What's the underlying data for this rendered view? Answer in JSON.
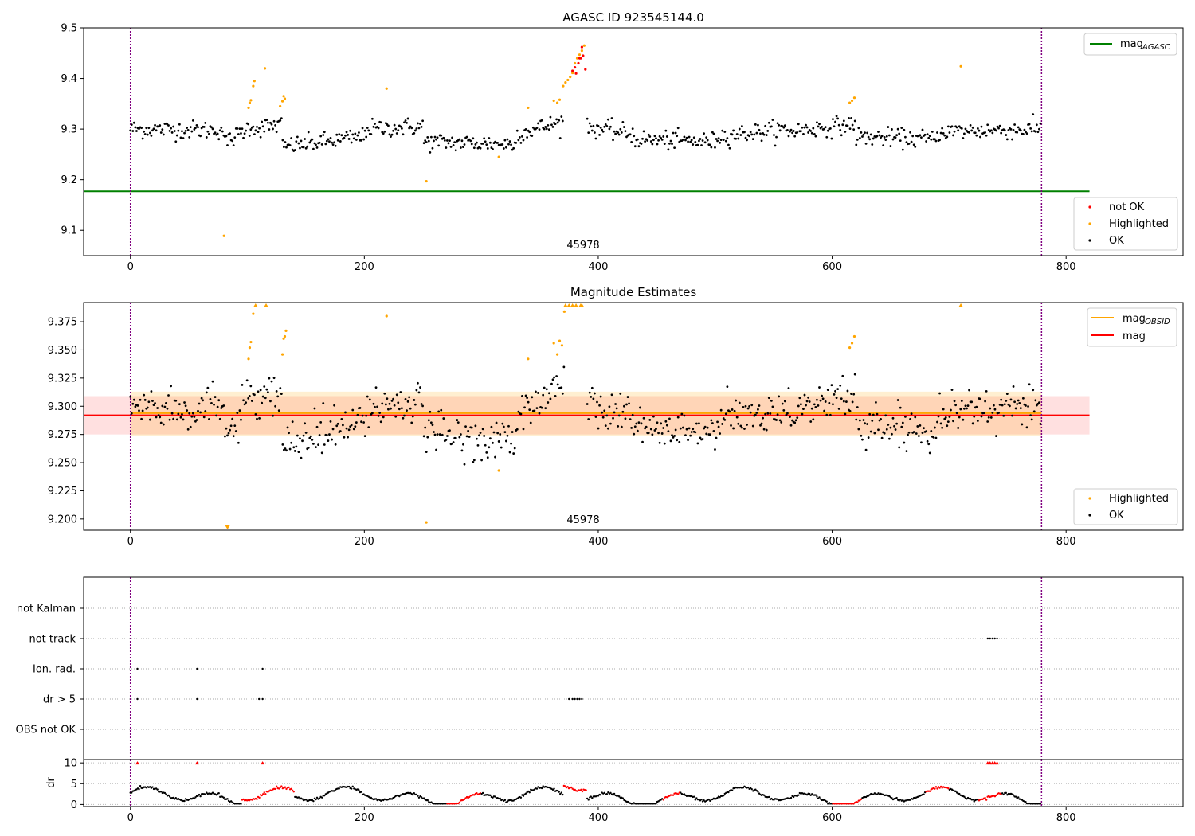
{
  "chart_data": [
    {
      "type": "scatter",
      "title": "AGASC ID 923545144.0",
      "x_ticks": [
        "0",
        "200",
        "400",
        "600",
        "800"
      ],
      "x_tick_values": [
        0,
        200,
        400,
        600,
        800
      ],
      "y_ticks": [
        "9.1",
        "9.2",
        "9.3",
        "9.4",
        "9.5"
      ],
      "y_tick_values": [
        9.1,
        9.2,
        9.3,
        9.4,
        9.5
      ],
      "xlim": [
        -40,
        900
      ],
      "ylim": [
        9.05,
        9.5
      ],
      "obsid_label": "45978",
      "vlines_x": [
        0,
        779
      ],
      "mag_agasc": 9.177,
      "mag_agasc_xrange": [
        -40,
        820
      ],
      "colors": {
        "ok": "#000000",
        "highlighted": "#ffa500",
        "not_ok": "#ff0000",
        "mag_agasc": "#008000",
        "vline": "#800080"
      },
      "legend_upper": [
        "mag",
        "AGASC"
      ],
      "legend_lower": [
        "not OK",
        "Highlighted",
        "OK"
      ],
      "series": [
        {
          "name": "OK",
          "x_range": [
            0,
            779
          ],
          "mean": 9.295
        },
        {
          "name": "Highlighted",
          "points": [
            [
              80,
              9.089
            ],
            [
              101,
              9.342
            ],
            [
              102,
              9.352
            ],
            [
              103,
              9.357
            ],
            [
              105,
              9.385
            ],
            [
              106,
              9.395
            ],
            [
              115,
              9.42
            ],
            [
              128,
              9.345
            ],
            [
              130,
              9.355
            ],
            [
              131,
              9.365
            ],
            [
              132,
              9.36
            ],
            [
              219,
              9.38
            ],
            [
              253,
              9.197
            ],
            [
              315,
              9.245
            ],
            [
              340,
              9.342
            ],
            [
              362,
              9.356
            ],
            [
              365,
              9.352
            ],
            [
              367,
              9.358
            ],
            [
              370,
              9.385
            ],
            [
              372,
              9.392
            ],
            [
              374,
              9.397
            ],
            [
              376,
              9.403
            ],
            [
              378,
              9.411
            ],
            [
              380,
              9.43
            ],
            [
              382,
              9.44
            ],
            [
              384,
              9.447
            ],
            [
              386,
              9.455
            ],
            [
              388,
              9.465
            ],
            [
              710,
              9.424
            ],
            [
              615,
              9.352
            ],
            [
              617,
              9.356
            ],
            [
              619,
              9.362
            ]
          ]
        },
        {
          "name": "not OK",
          "points": [
            [
              378,
              9.415
            ],
            [
              380,
              9.422
            ],
            [
              381,
              9.41
            ],
            [
              383,
              9.43
            ],
            [
              384,
              9.44
            ],
            [
              385,
              9.44
            ],
            [
              386,
              9.462
            ],
            [
              387,
              9.445
            ],
            [
              389,
              9.418
            ]
          ]
        }
      ]
    },
    {
      "type": "scatter",
      "title": "Magnitude Estimates",
      "x_ticks": [
        "0",
        "200",
        "400",
        "600",
        "800"
      ],
      "x_tick_values": [
        0,
        200,
        400,
        600,
        800
      ],
      "y_ticks": [
        "9.200",
        "9.225",
        "9.250",
        "9.275",
        "9.300",
        "9.325",
        "9.350",
        "9.375"
      ],
      "y_tick_values": [
        9.2,
        9.225,
        9.25,
        9.275,
        9.3,
        9.325,
        9.35,
        9.375
      ],
      "xlim": [
        -40,
        900
      ],
      "ylim": [
        9.19,
        9.392
      ],
      "obsid_label": "45978",
      "vlines_x": [
        0,
        779
      ],
      "mag": 9.292,
      "mag_band": [
        9.275,
        9.309
      ],
      "mag_obsid": 9.294,
      "mag_obsid_band": [
        9.274,
        9.313
      ],
      "band_xrange": [
        -40,
        820
      ],
      "colors": {
        "ok": "#000000",
        "highlighted": "#ffa500",
        "mag": "#ff0000",
        "mag_obsid": "#ffa500",
        "vline": "#800080"
      },
      "legend_upper": [
        "mag",
        "OBSID",
        "mag"
      ],
      "legend_lower": [
        "Highlighted",
        "OK"
      ],
      "series": [
        {
          "name": "OK",
          "x_range": [
            0,
            779
          ],
          "mean": 9.292
        },
        {
          "name": "Highlighted",
          "points": [
            [
              101,
              9.342
            ],
            [
              102,
              9.352
            ],
            [
              103,
              9.357
            ],
            [
              105,
              9.382
            ],
            [
              219,
              9.38
            ],
            [
              253,
              9.197
            ],
            [
              315,
              9.243
            ],
            [
              340,
              9.342
            ],
            [
              362,
              9.356
            ],
            [
              365,
              9.346
            ],
            [
              367,
              9.358
            ],
            [
              369,
              9.354
            ],
            [
              371,
              9.384
            ],
            [
              130,
              9.346
            ],
            [
              131,
              9.36
            ],
            [
              132,
              9.362
            ],
            [
              133,
              9.367
            ],
            [
              615,
              9.352
            ],
            [
              617,
              9.356
            ],
            [
              619,
              9.362
            ]
          ]
        },
        {
          "name": "Highlighted (clipped high)",
          "points": [
            [
              107,
              9.392
            ],
            [
              116,
              9.392
            ],
            [
              372,
              9.392
            ],
            [
              375,
              9.392
            ],
            [
              378,
              9.392
            ],
            [
              381,
              9.392
            ],
            [
              385,
              9.392
            ],
            [
              386,
              9.392
            ],
            [
              710,
              9.392
            ]
          ]
        },
        {
          "name": "Highlighted (clipped low)",
          "points": [
            [
              83,
              9.19
            ]
          ]
        }
      ]
    },
    {
      "type": "scatter",
      "title": "",
      "x_ticks": [
        "0",
        "200",
        "400",
        "600",
        "800"
      ],
      "x_tick_values": [
        0,
        200,
        400,
        600,
        800
      ],
      "xlim": [
        -40,
        900
      ],
      "categories": [
        "OBS not OK",
        "dr > 5",
        "Ion. rad.",
        "not track",
        "not Kalman"
      ],
      "vlines_x": [
        0,
        779
      ],
      "flag_points": {
        "dr > 5": [
          6,
          57,
          110,
          113,
          375,
          378,
          380,
          382,
          384,
          386
        ],
        "Ion. rad.": [
          6,
          57,
          113
        ],
        "not track": [
          733,
          735,
          737,
          739,
          741
        ]
      }
    },
    {
      "type": "scatter",
      "title": "",
      "ylabel": "dr",
      "x_ticks": [
        "0",
        "200",
        "400",
        "600",
        "800"
      ],
      "x_tick_values": [
        0,
        200,
        400,
        600,
        800
      ],
      "y_ticks": [
        "0",
        "5",
        "10"
      ],
      "y_tick_values": [
        0,
        5,
        10
      ],
      "xlim": [
        -40,
        900
      ],
      "ylim": [
        -0.5,
        10.8
      ],
      "vlines_x": [
        0,
        779
      ],
      "colors": {
        "ok": "#000000",
        "not_ok": "#ff0000"
      },
      "red_segments": [
        [
          95,
          140
        ],
        [
          270,
          300
        ],
        [
          370,
          390
        ],
        [
          455,
          470
        ],
        [
          600,
          625
        ],
        [
          680,
          700
        ],
        [
          725,
          745
        ]
      ],
      "clipped_points": [
        6,
        57,
        113,
        733,
        735,
        737,
        739,
        741
      ]
    }
  ]
}
